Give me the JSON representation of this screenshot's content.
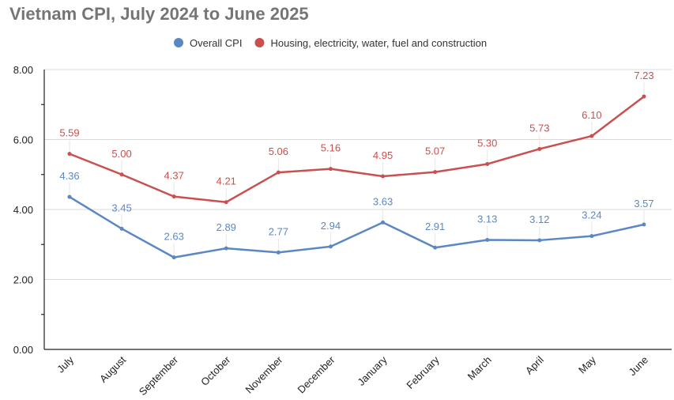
{
  "chart_data": {
    "type": "line",
    "title": "Vietnam CPI, July 2024 to June 2025",
    "categories": [
      "July",
      "August",
      "September",
      "October",
      "November",
      "December",
      "January",
      "February",
      "March",
      "April",
      "May",
      "June"
    ],
    "series": [
      {
        "name": "Overall CPI",
        "color": "#5b87c5",
        "values": [
          4.36,
          3.45,
          2.63,
          2.89,
          2.77,
          2.94,
          3.63,
          2.91,
          3.13,
          3.12,
          3.24,
          3.57
        ]
      },
      {
        "name": "Housing, electricity, water, fuel and construction",
        "color": "#c9504f",
        "values": [
          5.59,
          5.0,
          4.37,
          4.21,
          5.06,
          5.16,
          4.95,
          5.07,
          5.3,
          5.73,
          6.1,
          7.23
        ]
      }
    ],
    "ylim": [
      0,
      8
    ],
    "yticks": [
      "0.00",
      "2.00",
      "4.00",
      "6.00",
      "8.00"
    ],
    "grid": true,
    "legend_position": "top"
  }
}
